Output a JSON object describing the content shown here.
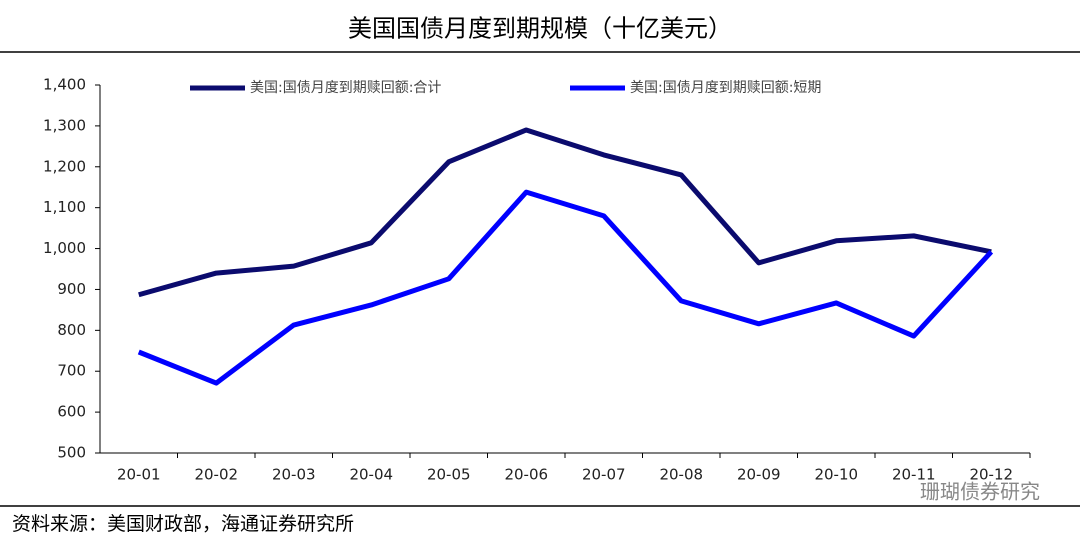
{
  "chart_data": {
    "type": "line",
    "title": "美国国债月度到期规模（十亿美元）",
    "source": "资料来源：美国财政部，海通证券研究所",
    "watermark": "珊瑚债券研究",
    "categories": [
      "20-01",
      "20-02",
      "20-03",
      "20-04",
      "20-05",
      "20-06",
      "20-07",
      "20-08",
      "20-09",
      "20-10",
      "20-11",
      "20-12"
    ],
    "series": [
      {
        "name": "美国:国债月度到期赎回额:合计",
        "color": "#0b0b6e",
        "values": [
          887,
          940,
          957,
          1014,
          1212,
          1290,
          1229,
          1180,
          965,
          1019,
          1031,
          992
        ]
      },
      {
        "name": "美国:国债月度到期赎回额:短期",
        "color": "#0000ff",
        "values": [
          747,
          671,
          813,
          862,
          926,
          1138,
          1080,
          872,
          816,
          867,
          786,
          992
        ]
      }
    ],
    "ylim": [
      500,
      1400
    ],
    "yticks": [
      500,
      600,
      700,
      800,
      900,
      {
        "value": 1000,
        "label": "1,000"
      },
      {
        "value": 1100,
        "label": "1,100"
      },
      {
        "value": 1200,
        "label": "1,200"
      },
      {
        "value": 1300,
        "label": "1,300"
      },
      {
        "value": 1400,
        "label": "1,400"
      }
    ],
    "grid": false
  }
}
